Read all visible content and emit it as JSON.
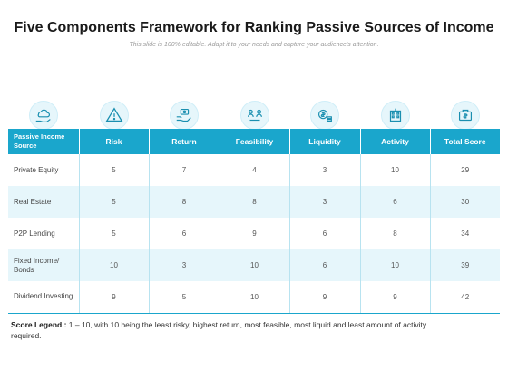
{
  "title": "Five Components Framework for Ranking Passive Sources of Income",
  "subtitle": "This slide is 100% editable. Adapt it to your needs and capture your audience's attention.",
  "icons": [
    "hand-cloud-money-icon",
    "warning-triangle-icon",
    "hand-money-return-icon",
    "people-network-icon",
    "dollar-coins-icon",
    "building-activity-icon",
    "money-briefcase-icon"
  ],
  "accent_color": "#1aa6cc",
  "alt_row_color": "#e6f6fb",
  "table": {
    "headers": [
      "Passive Income Source",
      "Risk",
      "Return",
      "Feasibility",
      "Liquidity",
      "Activity",
      "Total Score"
    ],
    "rows": [
      [
        "Private Equity",
        "5",
        "7",
        "4",
        "3",
        "10",
        "29"
      ],
      [
        "Real Estate",
        "5",
        "8",
        "8",
        "3",
        "6",
        "30"
      ],
      [
        "P2P Lending",
        "5",
        "6",
        "9",
        "6",
        "8",
        "34"
      ],
      [
        "Fixed Income/ Bonds",
        "10",
        "3",
        "10",
        "6",
        "10",
        "39"
      ],
      [
        "Dividend Investing",
        "9",
        "5",
        "10",
        "9",
        "9",
        "42"
      ]
    ]
  },
  "legend": {
    "label": "Score Legend :",
    "text": " 1 – 10, with 10 being the least risky, highest return, most feasible, most liquid and least amount of activity required."
  }
}
